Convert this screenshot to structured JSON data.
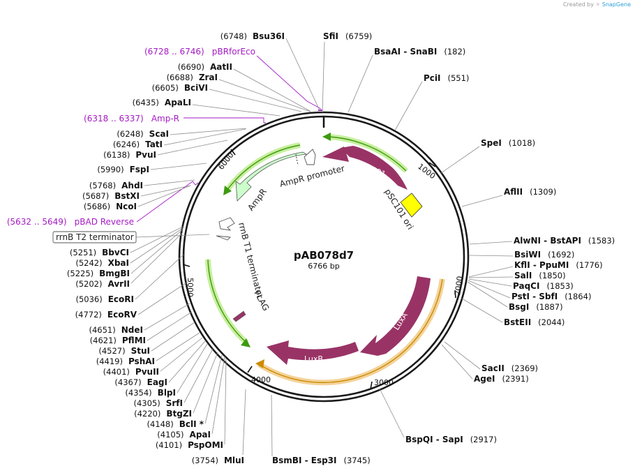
{
  "credit": {
    "prefix": "Created by",
    "brand": "SnapGene"
  },
  "plasmid": {
    "name": "pAB078d7",
    "length_label": "6766 bp"
  },
  "ticks": [
    "1000",
    "2000",
    "3000",
    "4000",
    "5000",
    "6000"
  ],
  "features": [
    {
      "id": "rep101",
      "label": "Rep101",
      "color": "#993366"
    },
    {
      "id": "psc101",
      "label": "pSC101 ori",
      "color": "#ffff00"
    },
    {
      "id": "ampr",
      "label": "AmpR",
      "color": "#ccffcc"
    },
    {
      "id": "amprp",
      "label": "AmpR promoter",
      "color": "#ffffff"
    },
    {
      "id": "luxa",
      "label": "LuxA",
      "color": "#993366"
    },
    {
      "id": "luxb",
      "label": "LuxB",
      "color": "#993366"
    },
    {
      "id": "rrnbt1",
      "label": "rrnB T1 terminator",
      "color": "#ffffff"
    },
    {
      "id": "flag",
      "label": "FLAG",
      "color": "#993366"
    },
    {
      "id": "rrnbt2",
      "label": "rrnB T2 terminator",
      "color": "#ffffff"
    }
  ],
  "primers": [
    {
      "pos": "(6728 .. 6746)",
      "name": "pBRforEco"
    },
    {
      "pos": "(6318 .. 6337)",
      "name": "Amp-R"
    },
    {
      "pos": "(5632 .. 5649)",
      "name": "pBAD Reverse"
    }
  ],
  "enzymes_right": [
    {
      "name": "Bsu36I",
      "pos": "(6748)"
    },
    {
      "name": "SfiI",
      "pos": "(6759)"
    },
    {
      "name": "BsaAI  - SnaBI",
      "pos": "(182)"
    },
    {
      "name": "PciI",
      "pos": "(551)"
    },
    {
      "name": "SpeI",
      "pos": "(1018)"
    },
    {
      "name": "AflII",
      "pos": "(1309)"
    },
    {
      "name": "AlwNI  - BstAPI",
      "pos": "(1583)"
    },
    {
      "name": "BsiWI",
      "pos": "(1692)"
    },
    {
      "name": "KflI  - PpuMI",
      "pos": "(1776)"
    },
    {
      "name": "SalI",
      "pos": "(1850)"
    },
    {
      "name": "PaqCI",
      "pos": "(1853)"
    },
    {
      "name": "PstI  - SbfI",
      "pos": "(1864)"
    },
    {
      "name": "BsgI",
      "pos": "(1887)"
    },
    {
      "name": "BstEII",
      "pos": "(2044)"
    },
    {
      "name": "SacII",
      "pos": "(2369)"
    },
    {
      "name": "AgeI",
      "pos": "(2391)"
    },
    {
      "name": "BspQI  - SapI",
      "pos": "(2917)"
    },
    {
      "name": "BsmBI  - Esp3I",
      "pos": "(3745)"
    }
  ],
  "enzymes_left": [
    {
      "pos": "(6690)",
      "name": "AatII"
    },
    {
      "pos": "(6688)",
      "name": "ZraI"
    },
    {
      "pos": "(6605)",
      "name": "BciVI"
    },
    {
      "pos": "(6435)",
      "name": "ApaLI"
    },
    {
      "pos": "(6248)",
      "name": "ScaI"
    },
    {
      "pos": "(6246)",
      "name": "TatI"
    },
    {
      "pos": "(6138)",
      "name": "PvuI"
    },
    {
      "pos": "(5990)",
      "name": "FspI"
    },
    {
      "pos": "(5768)",
      "name": "AhdI"
    },
    {
      "pos": "(5687)",
      "name": "BstXI"
    },
    {
      "pos": "(5686)",
      "name": "NcoI"
    },
    {
      "pos": "(5251)",
      "name": "BbvCI"
    },
    {
      "pos": "(5242)",
      "name": "XbaI"
    },
    {
      "pos": "(5225)",
      "name": "BmgBI"
    },
    {
      "pos": "(5202)",
      "name": "AvrII"
    },
    {
      "pos": "(5036)",
      "name": "EcoRI"
    },
    {
      "pos": "(4772)",
      "name": "EcoRV"
    },
    {
      "pos": "(4651)",
      "name": "NdeI"
    },
    {
      "pos": "(4621)",
      "name": "PflMI"
    },
    {
      "pos": "(4527)",
      "name": "StuI"
    },
    {
      "pos": "(4419)",
      "name": "PshAI"
    },
    {
      "pos": "(4401)",
      "name": "PvuII"
    },
    {
      "pos": "(4367)",
      "name": "EagI"
    },
    {
      "pos": "(4354)",
      "name": "BlpI"
    },
    {
      "pos": "(4305)",
      "name": "SrfI"
    },
    {
      "pos": "(4220)",
      "name": "BtgZI"
    },
    {
      "pos": "(4148)",
      "name": "BclI *"
    },
    {
      "pos": "(4105)",
      "name": "ApaI"
    },
    {
      "pos": "(4101)",
      "name": "PspOMI"
    },
    {
      "pos": "(3754)",
      "name": "MluI"
    }
  ]
}
